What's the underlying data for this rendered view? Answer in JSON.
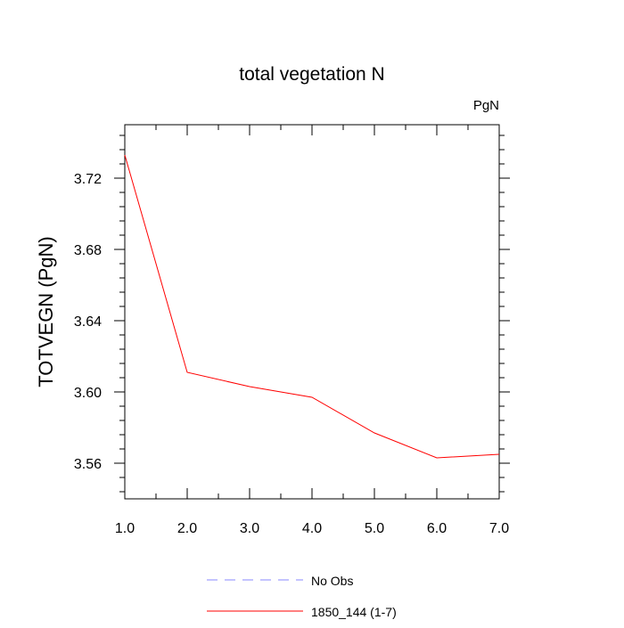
{
  "chart_data": {
    "type": "line",
    "title": "total vegetation N",
    "units_label": "PgN",
    "xlabel": "",
    "ylabel": "TOTVEGN  (PgN)",
    "xlim": [
      1.0,
      7.0
    ],
    "ylim": [
      3.54,
      3.75
    ],
    "x_ticks": [
      1.0,
      2.0,
      3.0,
      4.0,
      5.0,
      6.0,
      7.0
    ],
    "x_tick_labels": [
      "1.0",
      "2.0",
      "3.0",
      "4.0",
      "5.0",
      "6.0",
      "7.0"
    ],
    "y_ticks": [
      3.56,
      3.6,
      3.64,
      3.68,
      3.72
    ],
    "y_tick_labels": [
      "3.56",
      "3.60",
      "3.64",
      "3.68",
      "3.72"
    ],
    "grid": false,
    "legend_position": "bottom-center",
    "series": [
      {
        "name": "1850_144 (1-7)",
        "color": "#ff0000",
        "dash": "solid",
        "x": [
          1.0,
          2.0,
          3.0,
          4.0,
          5.0,
          6.0,
          7.0
        ],
        "values": [
          3.733,
          3.611,
          3.603,
          3.597,
          3.577,
          3.563,
          3.565
        ]
      }
    ],
    "legend": [
      {
        "label": "No Obs",
        "color": "#8888ff",
        "dash": "dashed"
      },
      {
        "label": "1850_144 (1-7)",
        "color": "#ff0000",
        "dash": "solid"
      }
    ]
  }
}
